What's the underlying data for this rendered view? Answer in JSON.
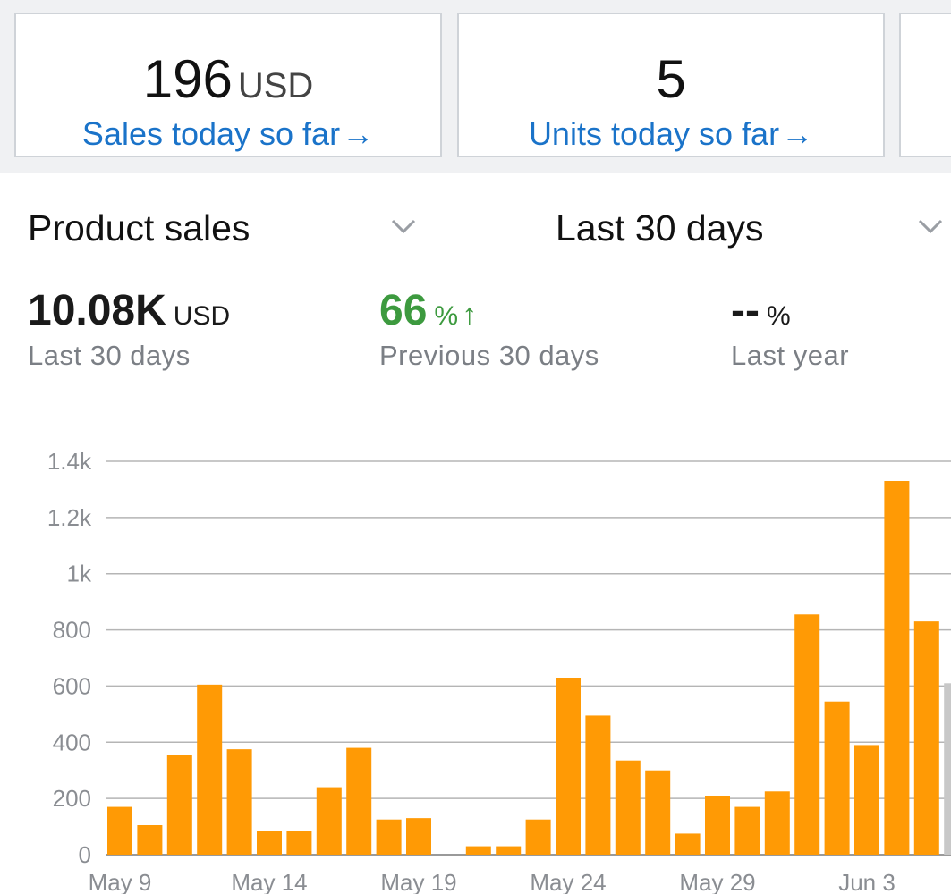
{
  "cards": [
    {
      "value": "196",
      "unit": "USD",
      "link": "Sales today so far",
      "arrow": "→"
    },
    {
      "value": "5",
      "unit": "",
      "link": "Units today so far",
      "arrow": "→"
    }
  ],
  "selectors": {
    "metric": "Product sales",
    "range": "Last 30 days"
  },
  "summary": {
    "total": {
      "value": "10.08K",
      "unit": "USD",
      "label": "Last 30 days"
    },
    "previous": {
      "value": "66",
      "unit": "%",
      "arrow": "↑",
      "label": "Previous 30 days",
      "color": "#3d9a3f"
    },
    "last_year": {
      "value": "--",
      "unit": "%",
      "label": "Last year"
    }
  },
  "icons": {
    "dropdown": "chevron-down-icon",
    "link_arrow": "arrow-right-icon",
    "trend": "arrow-up-icon"
  },
  "colors": {
    "accent": "#1a73c9",
    "bar": "#ff9a05",
    "positive": "#3d9a3f",
    "partial_bar": "#c8c8c8"
  },
  "chart_data": {
    "type": "bar",
    "x_labels": [
      "May 9",
      "May 14",
      "May 19",
      "May 24",
      "May 29",
      "Jun 3"
    ],
    "values": [
      170,
      105,
      355,
      605,
      375,
      85,
      85,
      240,
      380,
      125,
      130,
      0,
      30,
      30,
      125,
      630,
      495,
      335,
      300,
      75,
      210,
      170,
      225,
      855,
      545,
      390,
      1330,
      830,
      610
    ],
    "highlight_last_partial": true,
    "y_ticks": [
      "0",
      "200",
      "400",
      "600",
      "800",
      "1k",
      "1.2k",
      "1.4k"
    ],
    "ylim": [
      0,
      1400
    ],
    "grid": true
  }
}
